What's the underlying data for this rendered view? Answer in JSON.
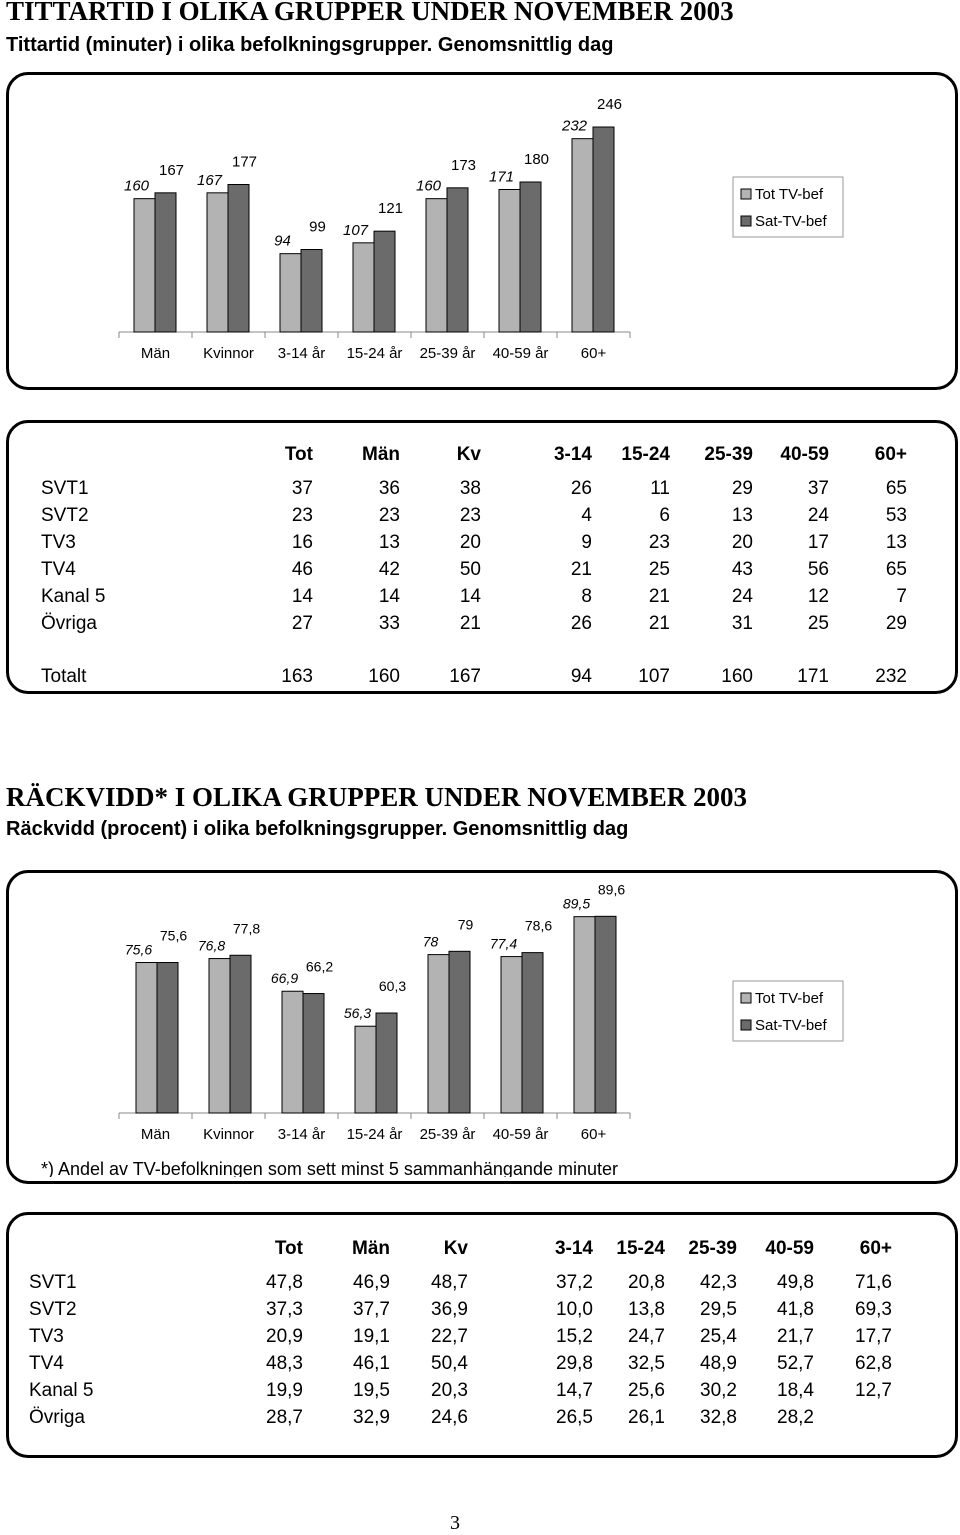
{
  "section1": {
    "title": "TITTARTID I OLIKA GRUPPER UNDER NOVEMBER 2003",
    "subtitle": "Tittartid (minuter) i olika befolkningsgrupper. Genomsnittlig dag"
  },
  "section2": {
    "title": "RÄCKVIDD* I OLIKA GRUPPER UNDER NOVEMBER 2003",
    "subtitle": "Räckvidd (procent) i olika befolkningsgrupper. Genomsnittlig dag"
  },
  "chart_data": [
    {
      "type": "bar",
      "categories": [
        "Män",
        "Kvinnor",
        "3-14 år",
        "15-24 år",
        "25-39 år",
        "40-59 år",
        "60+"
      ],
      "series": [
        {
          "name": "Tot TV-bef",
          "values": [
            160,
            167,
            94,
            107,
            160,
            171,
            232
          ],
          "labels": [
            "160",
            "167",
            "94",
            "107",
            "160",
            "171",
            "232"
          ],
          "color": "#b3b3b3"
        },
        {
          "name": "Sat-TV-bef",
          "values": [
            167,
            177,
            99,
            121,
            173,
            180,
            246
          ],
          "labels": [
            "167",
            "177",
            "99",
            "121",
            "173",
            "180",
            "246"
          ],
          "color": "#6b6b6b"
        }
      ],
      "legend": "right"
    },
    {
      "type": "bar",
      "categories": [
        "Män",
        "Kvinnor",
        "3-14 år",
        "15-24 år",
        "25-39 år",
        "40-59 år",
        "60+"
      ],
      "series": [
        {
          "name": "Tot TV-bef",
          "values": [
            75.6,
            76.8,
            66.9,
            56.3,
            78,
            77.4,
            89.5
          ],
          "labels": [
            "75,6",
            "76,8",
            "66,9",
            "56,3",
            "78",
            "77,4",
            "89,5"
          ],
          "color": "#b3b3b3"
        },
        {
          "name": "Sat-TV-bef",
          "values": [
            75.6,
            77.8,
            66.2,
            60.3,
            79,
            78.6,
            89.6
          ],
          "labels": [
            "75,6",
            "77,8",
            "66,2",
            "60,3",
            "79",
            "78,6",
            "89,6"
          ],
          "color": "#6b6b6b"
        }
      ],
      "legend": "right"
    }
  ],
  "table1": {
    "headers": [
      "",
      "Tot",
      "Män",
      "Kv",
      "3-14",
      "15-24",
      "25-39",
      "40-59",
      "60+"
    ],
    "rows": [
      [
        "SVT1",
        "37",
        "36",
        "38",
        "26",
        "11",
        "29",
        "37",
        "65"
      ],
      [
        "SVT2",
        "23",
        "23",
        "23",
        "4",
        "6",
        "13",
        "24",
        "53"
      ],
      [
        "TV3",
        "16",
        "13",
        "20",
        "9",
        "23",
        "20",
        "17",
        "13"
      ],
      [
        "TV4",
        "46",
        "42",
        "50",
        "21",
        "25",
        "43",
        "56",
        "65"
      ],
      [
        "Kanal 5",
        "14",
        "14",
        "14",
        "8",
        "21",
        "24",
        "12",
        "7"
      ],
      [
        "Övriga",
        "27",
        "33",
        "21",
        "26",
        "21",
        "31",
        "25",
        "29"
      ]
    ],
    "total": [
      "Totalt",
      "163",
      "160",
      "167",
      "94",
      "107",
      "160",
      "171",
      "232"
    ]
  },
  "footnote": "*) Andel av TV-befolkningen som sett minst 5 sammanhängande minuter",
  "table2": {
    "headers": [
      "",
      "Tot",
      "Män",
      "Kv",
      "3-14",
      "15-24",
      "25-39",
      "40-59",
      "60+"
    ],
    "rows": [
      [
        "SVT1",
        "47,8",
        "46,9",
        "48,7",
        "37,2",
        "20,8",
        "42,3",
        "49,8",
        "71,6"
      ],
      [
        "SVT2",
        "37,3",
        "37,7",
        "36,9",
        "10,0",
        "13,8",
        "29,5",
        "41,8",
        "69,3"
      ],
      [
        "TV3",
        "20,9",
        "19,1",
        "22,7",
        "15,2",
        "24,7",
        "25,4",
        "21,7",
        "17,7"
      ],
      [
        "TV4",
        "48,3",
        "46,1",
        "50,4",
        "29,8",
        "32,5",
        "48,9",
        "52,7",
        "62,8"
      ],
      [
        "Kanal 5",
        "19,9",
        "19,5",
        "20,3",
        "14,7",
        "25,6",
        "30,2",
        "18,4",
        "12,7"
      ],
      [
        "Övriga",
        "28,7",
        "32,9",
        "24,6",
        "26,5",
        "26,1",
        "32,8",
        "28,2",
        ""
      ]
    ]
  },
  "page_number": "3"
}
